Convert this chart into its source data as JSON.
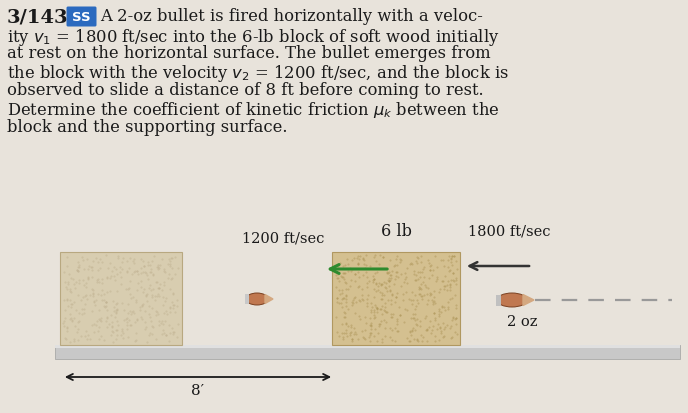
{
  "bg_color": "#e8e3db",
  "title_number": "3/143",
  "ss_label": "SS",
  "ss_bg": "#2b6abf",
  "ss_fg": "#ffffff",
  "block_left_color": "#d8cdb0",
  "block_right_color": "#d4c090",
  "block_left_edge": "#b8a880",
  "block_right_edge": "#b09860",
  "surface_color": "#c8c8c8",
  "surface_edge": "#a0a0a0",
  "arrow_green": "#2e8b2e",
  "arrow_dark": "#333333",
  "bullet_body": "#c07850",
  "bullet_tip": "#d4a880",
  "bullet_edge": "#7a4020",
  "dash_color": "#999999",
  "label_6lb": "6 lb",
  "label_1200": "1200 ft/sec",
  "label_1800": "1800 ft/sec",
  "label_2oz": "2 oz",
  "label_8ft": "8′",
  "text_color": "#1a1a1a",
  "font_size_main": 11.8,
  "font_size_label": 10.5
}
